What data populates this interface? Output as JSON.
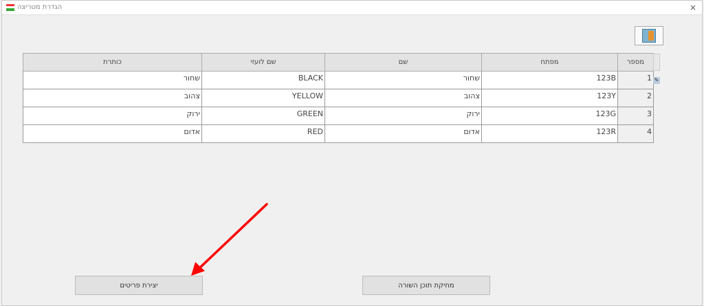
{
  "window": {
    "title": "הגדרת מטריצה",
    "close": "×"
  },
  "table": {
    "headers": [
      "מספר",
      "מפתח",
      "שם",
      "שם לועזי",
      "כותרת"
    ],
    "rows": [
      {
        "num": "1",
        "key": "123B",
        "name": "שחור",
        "foreign": "BLACK",
        "title": "שחור"
      },
      {
        "num": "2",
        "key": "123Y",
        "name": "צהוב",
        "foreign": "YELLOW",
        "title": "צהוב"
      },
      {
        "num": "3",
        "key": "123G",
        "name": "ירוק",
        "foreign": "GREEN",
        "title": "ירוק"
      },
      {
        "num": "4",
        "key": "123R",
        "name": "אדום",
        "foreign": "RED",
        "title": "אדום"
      }
    ]
  },
  "buttons": {
    "create_items": "יצירת פריטים",
    "delete_row": "מחיקת תוכן השורה"
  },
  "annotation": {
    "arrow_color": "#ff0000"
  }
}
